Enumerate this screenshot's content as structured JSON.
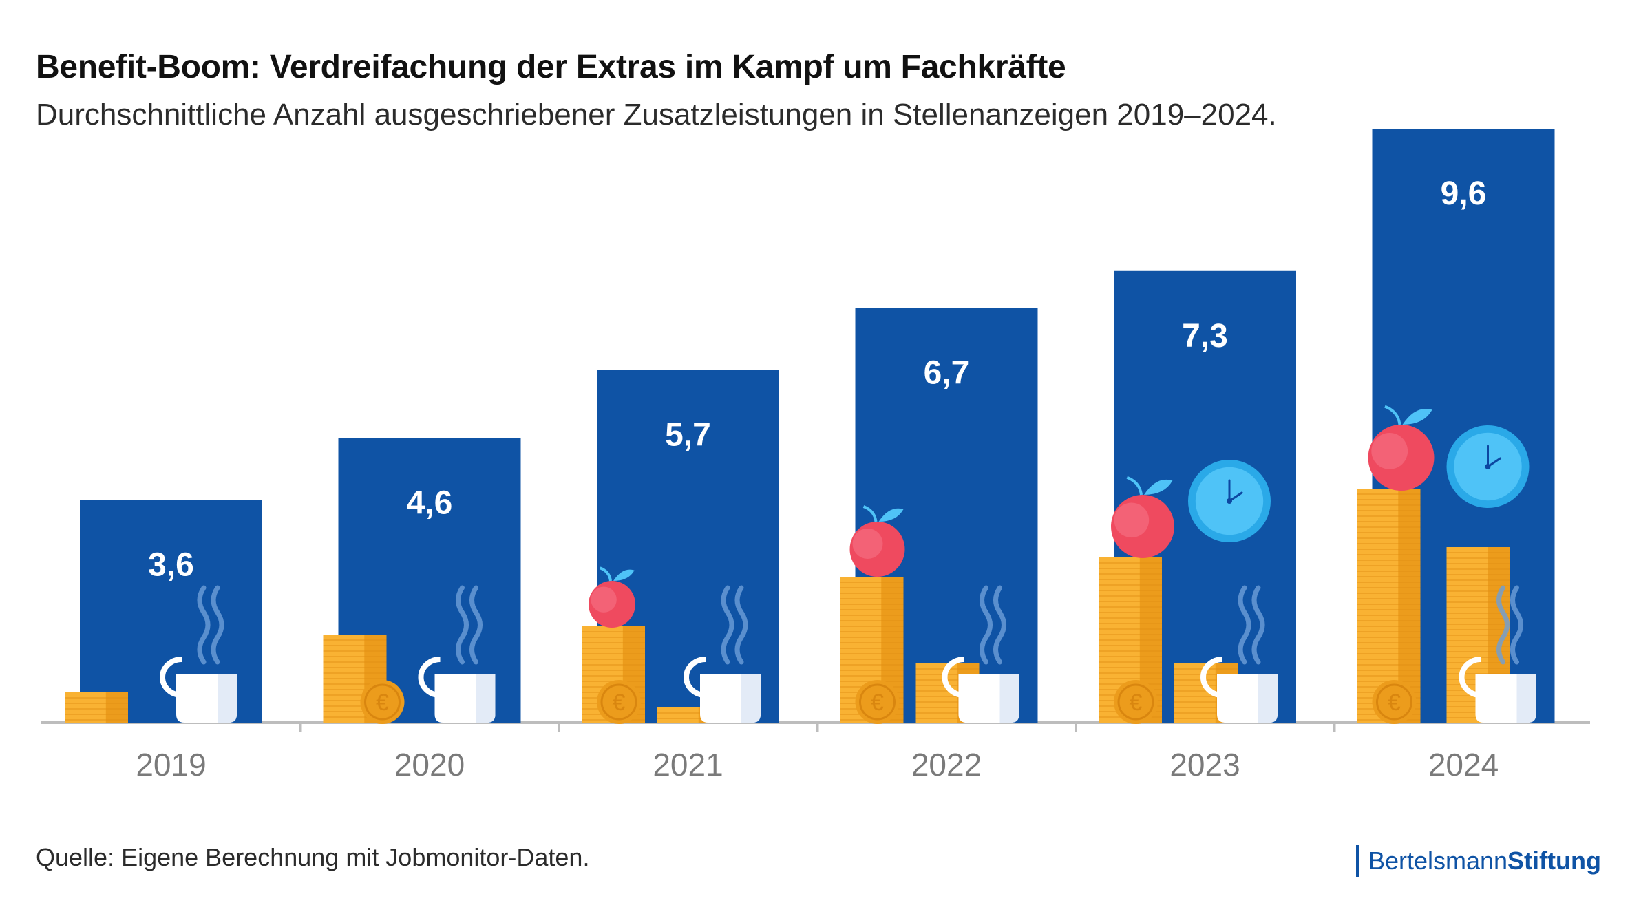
{
  "header": {
    "title": "Benefit-Boom: Verdreifachung der Extras im Kampf um Fachkräfte",
    "subtitle": "Durchschnittliche Anzahl ausgeschriebener Zusatzleistungen in Stellenanzeigen 2019–2024."
  },
  "footer": {
    "source": "Quelle: Eigene Berechnung mit Jobmonitor-Daten.",
    "logo_regular": "Bertelsmann",
    "logo_bold": "Stiftung"
  },
  "colors": {
    "bar": "#0f53a5",
    "coin": "#f9b233",
    "coin_dark": "#ec9c1c",
    "apple": "#ef4a5f",
    "clock": "#4fc3f7",
    "axis": "#bdbdbd",
    "steam": "#6d9fd8"
  },
  "chart_data": {
    "type": "bar",
    "categories": [
      "2019",
      "2020",
      "2021",
      "2022",
      "2023",
      "2024"
    ],
    "values": [
      3.6,
      4.6,
      5.7,
      6.7,
      7.3,
      9.6
    ],
    "value_labels": [
      "3,6",
      "4,6",
      "5,7",
      "6,7",
      "7,3",
      "9,6"
    ],
    "ylim": [
      0,
      9.6
    ],
    "grid": false,
    "icons_per_year": [
      [
        "coin-stack-icon",
        "coffee-cup-icon"
      ],
      [
        "coin-stack-icon",
        "euro-coin-icon",
        "coffee-cup-icon"
      ],
      [
        "coin-stack-icon",
        "apple-icon",
        "euro-coin-icon",
        "coffee-cup-icon"
      ],
      [
        "coin-stack-icon",
        "apple-icon",
        "euro-coin-icon",
        "coffee-cup-icon"
      ],
      [
        "coin-stack-icon",
        "apple-icon",
        "euro-coin-icon",
        "clock-icon",
        "coffee-cup-icon"
      ],
      [
        "coin-stack-icon",
        "apple-icon",
        "euro-coin-icon",
        "clock-icon",
        "coffee-cup-icon"
      ]
    ]
  }
}
